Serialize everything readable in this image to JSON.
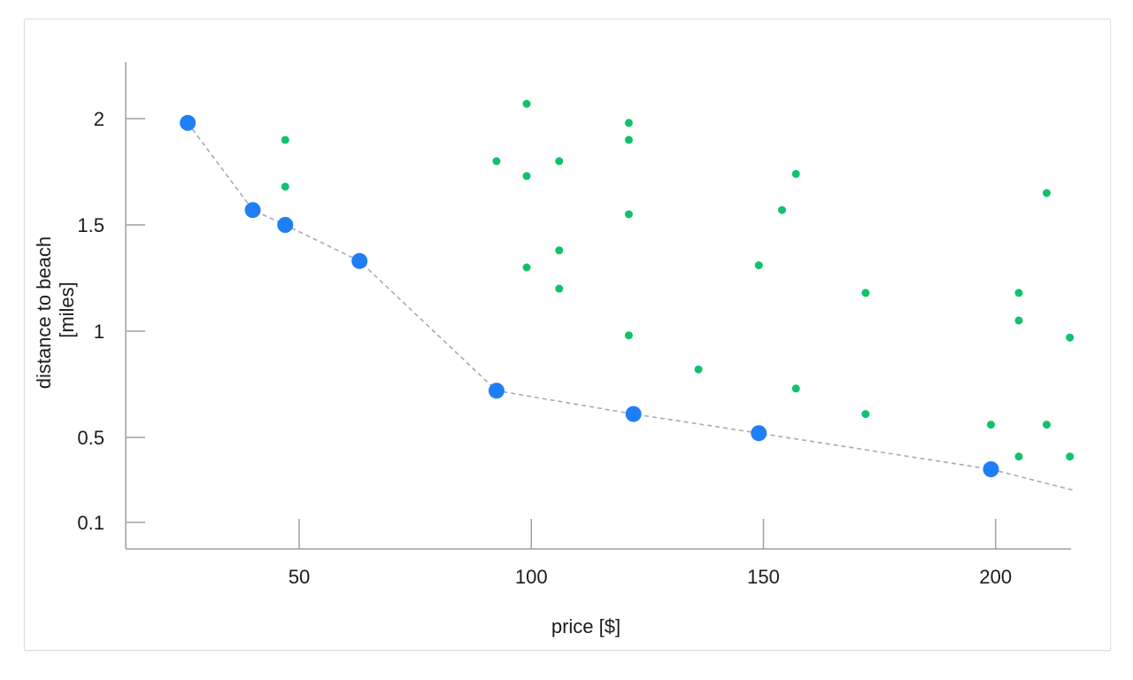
{
  "chart_data": {
    "type": "scatter",
    "xlabel": "price [$]",
    "ylabel_lines": [
      "distance to beach",
      "[miles]"
    ],
    "x_ticks": [
      50,
      100,
      150,
      200
    ],
    "y_ticks": [
      {
        "value": 0.1,
        "label": "0.1"
      },
      {
        "value": 0.5,
        "label": "0.5"
      },
      {
        "value": 1,
        "label": "1"
      },
      {
        "value": 1.5,
        "label": "1.5"
      },
      {
        "value": 2,
        "label": "2"
      }
    ],
    "xlim": [
      13,
      217
    ],
    "ylim": [
      0,
      2.25
    ],
    "frontier_color": "#1f7ef5",
    "other_color": "#10c26a",
    "frontier_line_color": "#a6a9b8",
    "frontier_line_end": [
      217,
      0.25
    ],
    "series": [
      {
        "role": "frontier",
        "points": [
          [
            26,
            1.98
          ],
          [
            40,
            1.57
          ],
          [
            47,
            1.5
          ],
          [
            63,
            1.33
          ],
          [
            92.5,
            0.72
          ],
          [
            122,
            0.61
          ],
          [
            149,
            0.52
          ],
          [
            199,
            0.35
          ]
        ]
      },
      {
        "role": "other",
        "points": [
          [
            47,
            1.9
          ],
          [
            47,
            1.68
          ],
          [
            92.5,
            1.8
          ],
          [
            99,
            2.07
          ],
          [
            99,
            1.73
          ],
          [
            99,
            1.3
          ],
          [
            106,
            1.8
          ],
          [
            106,
            1.38
          ],
          [
            106,
            1.2
          ],
          [
            121,
            1.98
          ],
          [
            121,
            1.9
          ],
          [
            121,
            1.55
          ],
          [
            121,
            0.98
          ],
          [
            136,
            0.82
          ],
          [
            149,
            1.31
          ],
          [
            154,
            1.57
          ],
          [
            157,
            1.74
          ],
          [
            157,
            0.73
          ],
          [
            172,
            1.18
          ],
          [
            172,
            0.61
          ],
          [
            199,
            0.56
          ],
          [
            205,
            1.18
          ],
          [
            205,
            1.05
          ],
          [
            205,
            0.41
          ],
          [
            211,
            1.65
          ],
          [
            211,
            0.56
          ],
          [
            216,
            0.97
          ],
          [
            216,
            0.41
          ]
        ]
      }
    ]
  }
}
